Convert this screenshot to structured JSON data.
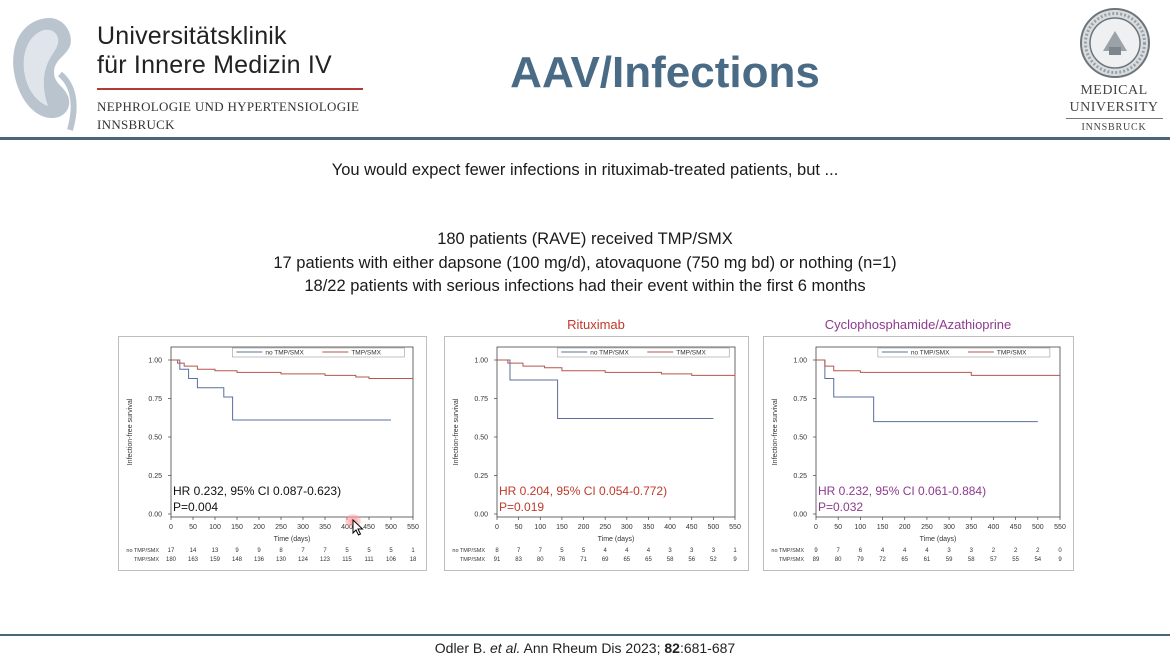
{
  "header": {
    "institution_line1": "Universitätsklinik",
    "institution_line2": "für Innere Medizin IV",
    "department_line1": "NEPHROLOGIE UND HYPERTENSIOLOGIE",
    "department_line2": "INNSBRUCK",
    "slide_title": "AAV/Infections",
    "university_line1": "MEDICAL",
    "university_line2": "UNIVERSITY",
    "university_line3": "INNSBRUCK"
  },
  "body": {
    "intro": "You would expect fewer infections in rituximab-treated patients, but ...",
    "bullets": [
      "180 patients (RAVE) received TMP/SMX",
      "17 patients with either dapsone (100 mg/d), atovaquone (750 mg bd) or nothing (n=1)",
      "18/22 patients with serious infections had their event within the first 6 months"
    ]
  },
  "colors": {
    "title_blue": "#4a6b86",
    "no_tmp_line": "#5a6fa0",
    "tmp_line": "#b5554f",
    "rituximab_red": "#c0392b",
    "cyclo_purple": "#8e3a8e"
  },
  "chart_data": [
    {
      "type": "line",
      "title": "",
      "xlabel": "Time (days)",
      "ylabel": "Infection-free survival",
      "xticks": [
        0,
        50,
        100,
        150,
        200,
        250,
        300,
        350,
        400,
        450,
        500,
        550
      ],
      "yticks": [
        "0.00",
        "0.25",
        "0.50",
        "0.75",
        "1.00"
      ],
      "xlim": [
        0,
        550
      ],
      "ylim": [
        0,
        1
      ],
      "legend": [
        "no TMP/SMX",
        "TMP/SMX"
      ],
      "legend_position": "top",
      "series": [
        {
          "name": "no TMP/SMX",
          "x": [
            0,
            20,
            40,
            60,
            120,
            140,
            500
          ],
          "y": [
            1.0,
            0.94,
            0.88,
            0.82,
            0.76,
            0.61,
            0.61
          ]
        },
        {
          "name": "TMP/SMX",
          "x": [
            0,
            15,
            30,
            60,
            100,
            150,
            250,
            350,
            420,
            450,
            550
          ],
          "y": [
            1.0,
            0.98,
            0.96,
            0.94,
            0.93,
            0.92,
            0.91,
            0.9,
            0.89,
            0.88,
            0.88
          ]
        }
      ],
      "annotation_line1": "HR 0.232, 95% CI 0.087-0.623)",
      "annotation_line2": "P=0.004",
      "annotation_color": "#111111",
      "risk_table": {
        "labels": [
          "no TMP/SMX",
          "TMP/SMX"
        ],
        "rows": [
          [
            "17",
            "14",
            "13",
            "9",
            "9",
            "8",
            "7",
            "7",
            "5",
            "5",
            "5",
            "1"
          ],
          [
            "180",
            "163",
            "159",
            "148",
            "136",
            "130",
            "124",
            "123",
            "115",
            "111",
            "106",
            "18"
          ]
        ]
      }
    },
    {
      "type": "line",
      "title": "Rituximab",
      "xlabel": "Time (days)",
      "ylabel": "Infection-free survival",
      "xticks": [
        0,
        50,
        100,
        150,
        200,
        250,
        300,
        350,
        400,
        450,
        500,
        550
      ],
      "yticks": [
        "0.00",
        "0.25",
        "0.50",
        "0.75",
        "1.00"
      ],
      "xlim": [
        0,
        550
      ],
      "ylim": [
        0,
        1
      ],
      "legend": [
        "no TMP/SMX",
        "TMP/SMX"
      ],
      "legend_position": "top",
      "series": [
        {
          "name": "no TMP/SMX",
          "x": [
            0,
            30,
            140,
            500
          ],
          "y": [
            1.0,
            0.87,
            0.62,
            0.62
          ]
        },
        {
          "name": "TMP/SMX",
          "x": [
            0,
            25,
            60,
            110,
            150,
            250,
            380,
            450,
            550
          ],
          "y": [
            1.0,
            0.98,
            0.96,
            0.95,
            0.93,
            0.92,
            0.91,
            0.9,
            0.88
          ]
        }
      ],
      "annotation_line1": "HR 0.204, 95% CI 0.054-0.772)",
      "annotation_line2": "P=0.019",
      "annotation_color": "#c0392b",
      "risk_table": {
        "labels": [
          "no TMP/SMX",
          "TMP/SMX"
        ],
        "rows": [
          [
            "8",
            "7",
            "7",
            "5",
            "5",
            "4",
            "4",
            "4",
            "3",
            "3",
            "3",
            "1"
          ],
          [
            "91",
            "83",
            "80",
            "76",
            "71",
            "69",
            "65",
            "65",
            "58",
            "56",
            "52",
            "9"
          ]
        ]
      }
    },
    {
      "type": "line",
      "title": "Cyclophosphamide/Azathioprine",
      "xlabel": "Time (days)",
      "ylabel": "Infection-free survival",
      "xticks": [
        0,
        50,
        100,
        150,
        200,
        250,
        300,
        350,
        400,
        450,
        500,
        550
      ],
      "yticks": [
        "0.00",
        "0.25",
        "0.50",
        "0.75",
        "1.00"
      ],
      "xlim": [
        0,
        550
      ],
      "ylim": [
        0,
        1
      ],
      "legend": [
        "no TMP/SMX",
        "TMP/SMX"
      ],
      "legend_position": "top",
      "series": [
        {
          "name": "no TMP/SMX",
          "x": [
            0,
            20,
            40,
            130,
            500
          ],
          "y": [
            1.0,
            0.88,
            0.76,
            0.6,
            0.6
          ]
        },
        {
          "name": "TMP/SMX",
          "x": [
            0,
            20,
            40,
            100,
            200,
            350,
            550
          ],
          "y": [
            1.0,
            0.96,
            0.93,
            0.92,
            0.92,
            0.9,
            0.9
          ]
        }
      ],
      "annotation_line1": "HR 0.232, 95% CI 0.061-0.884)",
      "annotation_line2": "P=0.032",
      "annotation_color": "#8e3a8e",
      "risk_table": {
        "labels": [
          "no TMP/SMX",
          "TMP/SMX"
        ],
        "rows": [
          [
            "9",
            "7",
            "6",
            "4",
            "4",
            "4",
            "3",
            "3",
            "2",
            "2",
            "2",
            "0"
          ],
          [
            "89",
            "80",
            "79",
            "72",
            "65",
            "61",
            "59",
            "58",
            "57",
            "55",
            "54",
            "9"
          ]
        ]
      }
    }
  ],
  "footer": {
    "author": "Odler B.",
    "etal": "et al.",
    "journal": "Ann Rheum Dis 2023;",
    "volume": "82",
    "pages": ":681-687"
  }
}
